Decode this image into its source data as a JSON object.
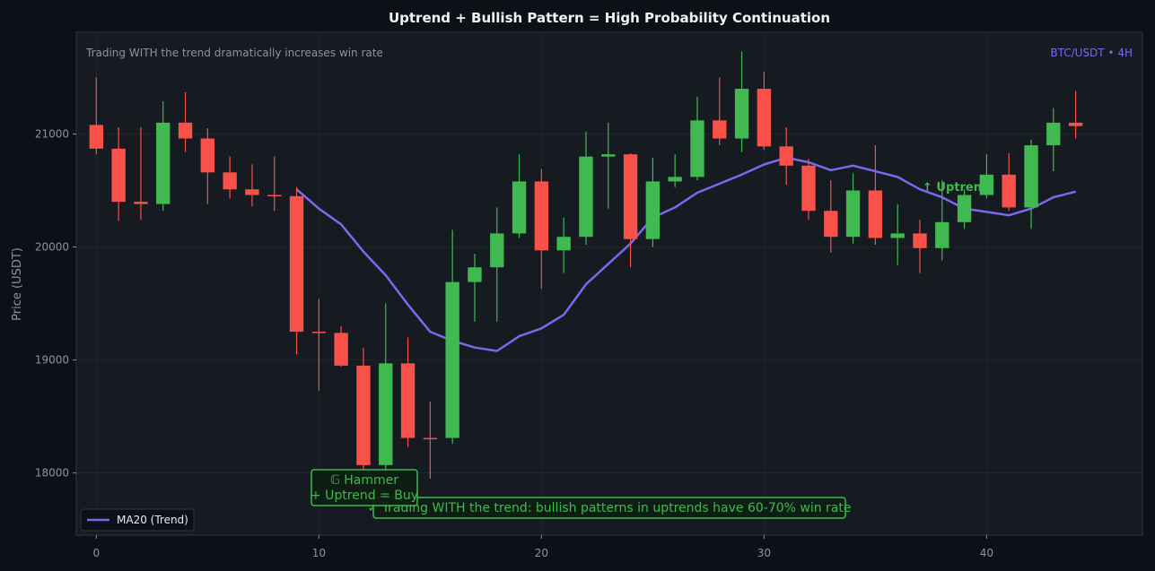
{
  "chart_data": {
    "type": "candlestick",
    "title": "Uptrend + Bullish Pattern = High Probability Continuation",
    "subtitle": "Trading WITH the trend dramatically increases win rate",
    "pair_label": "BTC/USDT • 4H",
    "xlabel": "",
    "ylabel": "Price (USDT)",
    "xlim": [
      -0.9,
      47.0
    ],
    "ylim": [
      17450,
      21900
    ],
    "x_ticks": [
      0,
      10,
      20,
      30,
      40
    ],
    "y_ticks": [
      18000,
      19000,
      20000,
      21000
    ],
    "grid": true,
    "colors": {
      "background": "#0d1117",
      "plot_bg": "#161b22",
      "up": "#3fb950",
      "down": "#f85149",
      "ma": "#7b68ee",
      "grid": "#21262d"
    },
    "candles": [
      {
        "x": 0,
        "o": 21080,
        "h": 21500,
        "l": 20820,
        "c": 20870
      },
      {
        "x": 1,
        "o": 20870,
        "h": 21060,
        "l": 20230,
        "c": 20400
      },
      {
        "x": 2,
        "o": 20400,
        "h": 21060,
        "l": 20240,
        "c": 20380
      },
      {
        "x": 3,
        "o": 20380,
        "h": 21290,
        "l": 20320,
        "c": 21100
      },
      {
        "x": 4,
        "o": 21100,
        "h": 21370,
        "l": 20840,
        "c": 20960
      },
      {
        "x": 5,
        "o": 20960,
        "h": 21050,
        "l": 20380,
        "c": 20660
      },
      {
        "x": 6,
        "o": 20660,
        "h": 20800,
        "l": 20430,
        "c": 20510
      },
      {
        "x": 7,
        "o": 20510,
        "h": 20730,
        "l": 20360,
        "c": 20460
      },
      {
        "x": 8,
        "o": 20460,
        "h": 20800,
        "l": 20320,
        "c": 20450
      },
      {
        "x": 9,
        "o": 20450,
        "h": 20530,
        "l": 19050,
        "c": 19250
      },
      {
        "x": 10,
        "o": 19250,
        "h": 19540,
        "l": 18730,
        "c": 19240
      },
      {
        "x": 11,
        "o": 19240,
        "h": 19300,
        "l": 18940,
        "c": 18950
      },
      {
        "x": 12,
        "o": 18950,
        "h": 19110,
        "l": 18000,
        "c": 18070
      },
      {
        "x": 13,
        "o": 18070,
        "h": 19500,
        "l": 17980,
        "c": 18970
      },
      {
        "x": 14,
        "o": 18970,
        "h": 19200,
        "l": 18230,
        "c": 18310
      },
      {
        "x": 15,
        "o": 18310,
        "h": 18630,
        "l": 17950,
        "c": 18300
      },
      {
        "x": 16,
        "o": 18310,
        "h": 20150,
        "l": 18260,
        "c": 19690
      },
      {
        "x": 17,
        "o": 19690,
        "h": 19940,
        "l": 19340,
        "c": 19820
      },
      {
        "x": 18,
        "o": 19820,
        "h": 20350,
        "l": 19340,
        "c": 20120
      },
      {
        "x": 19,
        "o": 20120,
        "h": 20820,
        "l": 20080,
        "c": 20580
      },
      {
        "x": 20,
        "o": 20580,
        "h": 20690,
        "l": 19630,
        "c": 19970
      },
      {
        "x": 21,
        "o": 19970,
        "h": 20260,
        "l": 19770,
        "c": 20090
      },
      {
        "x": 22,
        "o": 20090,
        "h": 21020,
        "l": 20020,
        "c": 20800
      },
      {
        "x": 23,
        "o": 20800,
        "h": 21100,
        "l": 20340,
        "c": 20820
      },
      {
        "x": 24,
        "o": 20820,
        "h": 20830,
        "l": 19820,
        "c": 20070
      },
      {
        "x": 25,
        "o": 20070,
        "h": 20790,
        "l": 20000,
        "c": 20580
      },
      {
        "x": 26,
        "o": 20580,
        "h": 20820,
        "l": 20530,
        "c": 20620
      },
      {
        "x": 27,
        "o": 20620,
        "h": 21330,
        "l": 20590,
        "c": 21120
      },
      {
        "x": 28,
        "o": 21120,
        "h": 21500,
        "l": 20900,
        "c": 20960
      },
      {
        "x": 29,
        "o": 20960,
        "h": 21730,
        "l": 20840,
        "c": 21400
      },
      {
        "x": 30,
        "o": 21400,
        "h": 21550,
        "l": 20860,
        "c": 20890
      },
      {
        "x": 31,
        "o": 20890,
        "h": 21060,
        "l": 20550,
        "c": 20720
      },
      {
        "x": 32,
        "o": 20720,
        "h": 20780,
        "l": 20240,
        "c": 20320
      },
      {
        "x": 33,
        "o": 20320,
        "h": 20590,
        "l": 19950,
        "c": 20090
      },
      {
        "x": 34,
        "o": 20090,
        "h": 20650,
        "l": 20030,
        "c": 20500
      },
      {
        "x": 35,
        "o": 20500,
        "h": 20900,
        "l": 20020,
        "c": 20080
      },
      {
        "x": 36,
        "o": 20080,
        "h": 20380,
        "l": 19840,
        "c": 20120
      },
      {
        "x": 37,
        "o": 20120,
        "h": 20240,
        "l": 19770,
        "c": 19990
      },
      {
        "x": 38,
        "o": 19990,
        "h": 20590,
        "l": 19880,
        "c": 20220
      },
      {
        "x": 39,
        "o": 20220,
        "h": 20510,
        "l": 20160,
        "c": 20460
      },
      {
        "x": 40,
        "o": 20460,
        "h": 20820,
        "l": 20430,
        "c": 20640
      },
      {
        "x": 41,
        "o": 20640,
        "h": 20830,
        "l": 20320,
        "c": 20350
      },
      {
        "x": 42,
        "o": 20350,
        "h": 20950,
        "l": 20160,
        "c": 20900
      },
      {
        "x": 43,
        "o": 20900,
        "h": 21230,
        "l": 20670,
        "c": 21100
      },
      {
        "x": 44,
        "o": 21100,
        "h": 21380,
        "l": 20960,
        "c": 21070
      }
    ],
    "series": [
      {
        "name": "MA20 (Trend)",
        "x": [
          9,
          10,
          11,
          12,
          13,
          14,
          15,
          16,
          17,
          18,
          19,
          20,
          21,
          22,
          23,
          24,
          25,
          26,
          27,
          28,
          29,
          30,
          31,
          32,
          33,
          34,
          35,
          36,
          37,
          38,
          39,
          40,
          41,
          42,
          43,
          44
        ],
        "values": [
          20510,
          20340,
          20200,
          19960,
          19750,
          19490,
          19250,
          19170,
          19110,
          19080,
          19210,
          19280,
          19400,
          19670,
          19850,
          20030,
          20260,
          20350,
          20480,
          20560,
          20640,
          20730,
          20790,
          20750,
          20680,
          20720,
          20670,
          20620,
          20510,
          20440,
          20340,
          20310,
          20280,
          20340,
          20440,
          20490
        ]
      }
    ],
    "annotations": {
      "hammer_line1": "𝔾 Hammer",
      "hammer_line2": "+ Uptrend = Buy",
      "uptrend": "↑ Uptrend",
      "trend_note": "✓ Trading WITH the trend: bullish patterns in uptrends have 60-70% win rate"
    },
    "legend": {
      "position": "lower-left",
      "label": "MA20 (Trend)"
    }
  }
}
